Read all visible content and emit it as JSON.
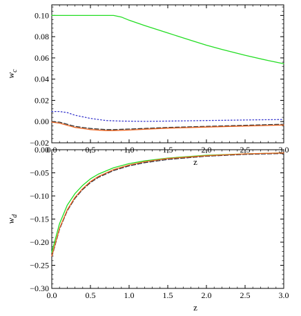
{
  "chart_data": [
    {
      "type": "line",
      "title": "",
      "xlabel": "z",
      "ylabel": "w",
      "ylabel_sub": "c",
      "xlim": [
        0,
        3
      ],
      "ylim": [
        -0.02,
        0.11
      ],
      "x_ticks": [
        0,
        0.5,
        1,
        1.5,
        2,
        2.5,
        3
      ],
      "x_tick_labels": [
        "0.0",
        "0.5",
        "1.0",
        "1.5",
        "2.0",
        "2.5",
        "3.0"
      ],
      "y_ticks": [
        -0.02,
        0,
        0.02,
        0.04,
        0.06,
        0.08,
        0.1
      ],
      "y_tick_labels": [
        "−0.02",
        "0.00",
        "0.02",
        "0.04",
        "0.06",
        "0.08",
        "0.10"
      ],
      "grid": false,
      "series": [
        {
          "style": "solid",
          "color": "#22dd22",
          "x": [
            0,
            0.6,
            0.8,
            0.9,
            1.0,
            1.2,
            1.5,
            1.8,
            2.0,
            2.2,
            2.5,
            2.8,
            3.0
          ],
          "y": [
            0.1,
            0.1,
            0.1,
            0.0985,
            0.0955,
            0.0905,
            0.0835,
            0.0765,
            0.072,
            0.068,
            0.0625,
            0.0575,
            0.0545
          ]
        },
        {
          "style": "dotted",
          "color": "#3333cc",
          "x": [
            0,
            0.1,
            0.2,
            0.3,
            0.5,
            0.7,
            0.9,
            1.2,
            1.5,
            2.0,
            2.5,
            3.0
          ],
          "y": [
            0.0095,
            0.0095,
            0.0085,
            0.006,
            0.003,
            0.001,
            0.0005,
            0.0002,
            0.0005,
            0.001,
            0.0015,
            0.002
          ]
        },
        {
          "style": "dashed",
          "color": "#333333",
          "x": [
            0,
            0.1,
            0.2,
            0.3,
            0.5,
            0.7,
            0.8,
            1.0,
            1.2,
            1.5,
            2.0,
            2.5,
            3.0
          ],
          "y": [
            0.0,
            -0.0005,
            -0.0025,
            -0.0045,
            -0.0065,
            -0.0075,
            -0.0075,
            -0.007,
            -0.0065,
            -0.0055,
            -0.0045,
            -0.0035,
            -0.0025
          ]
        },
        {
          "style": "solid",
          "color": "#ee6622",
          "x": [
            0,
            0.1,
            0.2,
            0.3,
            0.5,
            0.7,
            0.8,
            1.0,
            1.2,
            1.5,
            2.0,
            2.5,
            3.0
          ],
          "y": [
            -0.0005,
            -0.0015,
            -0.0035,
            -0.0055,
            -0.0075,
            -0.0085,
            -0.0085,
            -0.008,
            -0.0072,
            -0.0062,
            -0.0052,
            -0.0042,
            -0.0032
          ]
        }
      ]
    },
    {
      "type": "line",
      "title": "",
      "xlabel": "z",
      "ylabel": "w",
      "ylabel_sub": "d",
      "xlim": [
        0,
        3
      ],
      "ylim": [
        -0.3,
        0
      ],
      "x_ticks": [
        0,
        0.5,
        1,
        1.5,
        2,
        2.5,
        3
      ],
      "x_tick_labels": [
        "0.0",
        "0.5",
        "1.0",
        "1.5",
        "2.0",
        "2.5",
        "3.0"
      ],
      "y_ticks": [
        -0.3,
        -0.25,
        -0.2,
        -0.15,
        -0.1,
        -0.05,
        0
      ],
      "y_tick_labels": [
        "−0.30",
        "−0.25",
        "−0.20",
        "−0.15",
        "−0.10",
        "−0.05",
        "0.00"
      ],
      "grid": false,
      "series": [
        {
          "style": "solid",
          "color": "#22dd22",
          "x": [
            0,
            0.1,
            0.2,
            0.3,
            0.4,
            0.5,
            0.6,
            0.8,
            1.0,
            1.2,
            1.5,
            2.0,
            2.5,
            3.0
          ],
          "y": [
            -0.222,
            -0.16,
            -0.12,
            -0.095,
            -0.077,
            -0.063,
            -0.053,
            -0.039,
            -0.03,
            -0.024,
            -0.018,
            -0.012,
            -0.009,
            -0.007
          ]
        },
        {
          "style": "dotted",
          "color": "#3333cc",
          "x": [
            0,
            0.1,
            0.2,
            0.3,
            0.4,
            0.5,
            0.6,
            0.8,
            1.0,
            1.2,
            1.5,
            2.0,
            2.5,
            3.0
          ],
          "y": [
            -0.232,
            -0.172,
            -0.132,
            -0.105,
            -0.086,
            -0.071,
            -0.06,
            -0.045,
            -0.035,
            -0.028,
            -0.021,
            -0.014,
            -0.01,
            -0.008
          ]
        },
        {
          "style": "dashed",
          "color": "#333333",
          "x": [
            0,
            0.1,
            0.2,
            0.3,
            0.4,
            0.5,
            0.6,
            0.8,
            1.0,
            1.2,
            1.5,
            2.0,
            2.5,
            3.0
          ],
          "y": [
            -0.232,
            -0.172,
            -0.132,
            -0.105,
            -0.086,
            -0.071,
            -0.06,
            -0.045,
            -0.035,
            -0.028,
            -0.021,
            -0.014,
            -0.01,
            -0.008
          ]
        },
        {
          "style": "solid",
          "color": "#ee6622",
          "x": [
            0,
            0.1,
            0.2,
            0.3,
            0.4,
            0.5,
            0.6,
            0.8,
            1.0,
            1.2,
            1.5,
            2.0,
            2.5,
            3.0
          ],
          "y": [
            -0.23,
            -0.17,
            -0.13,
            -0.103,
            -0.084,
            -0.069,
            -0.058,
            -0.043,
            -0.033,
            -0.026,
            -0.019,
            -0.013,
            -0.009,
            -0.007
          ]
        }
      ]
    }
  ]
}
